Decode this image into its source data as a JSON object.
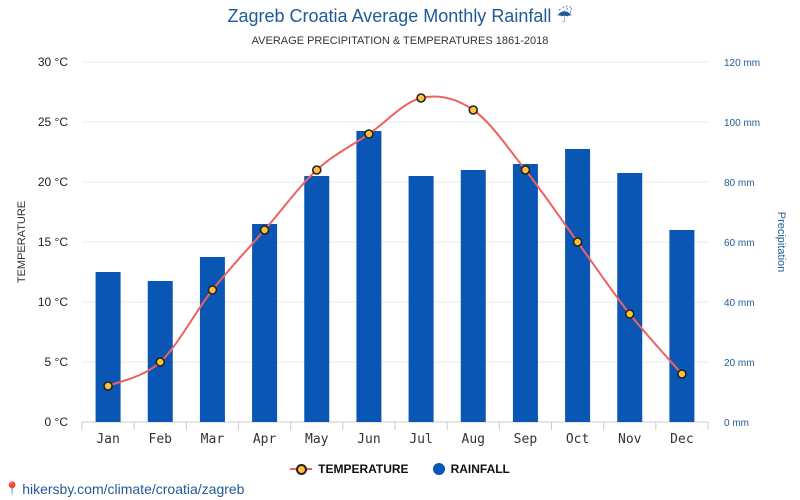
{
  "title": "Zagreb Croatia Average Monthly Rainfall",
  "title_icon": "umbrella-rain-icon",
  "subtitle": "AVERAGE PRECIPITATION & TEMPERATURES 1861-2018",
  "source": "hikersby.com/climate/croatia/zagreb",
  "colors": {
    "bar": "#0a56b4",
    "line": "#f06060",
    "marker": "#ffc13b",
    "accent": "#1f5a96"
  },
  "legend": {
    "temperature": "TEMPERATURE",
    "rainfall": "RAINFALL",
    "position": "bottom-center"
  },
  "chart_data": {
    "type": "bar",
    "categories": [
      "Jan",
      "Feb",
      "Mar",
      "Apr",
      "May",
      "Jun",
      "Jul",
      "Aug",
      "Sep",
      "Oct",
      "Nov",
      "Dec"
    ],
    "series": [
      {
        "name": "RAINFALL",
        "type": "bar",
        "axis": "right",
        "values": [
          50,
          47,
          55,
          66,
          82,
          97,
          82,
          84,
          86,
          91,
          83,
          64
        ]
      },
      {
        "name": "TEMPERATURE",
        "type": "line",
        "axis": "left",
        "values": [
          3,
          5,
          11,
          16,
          21,
          24,
          27,
          26,
          21,
          15,
          9,
          4
        ]
      }
    ],
    "ylabel_left": "TEMPERATURE",
    "ylabel_right": "Precipitation",
    "ylim_left": [
      0,
      30
    ],
    "ylim_right": [
      0,
      120
    ],
    "yticks_left": [
      "0 °C",
      "5 °C",
      "10 °C",
      "15 °C",
      "20 °C",
      "25 °C",
      "30 °C"
    ],
    "yticks_right": [
      "0 mm",
      "20 mm",
      "40 mm",
      "60 mm",
      "80 mm",
      "100 mm",
      "120 mm"
    ],
    "grid": true
  }
}
